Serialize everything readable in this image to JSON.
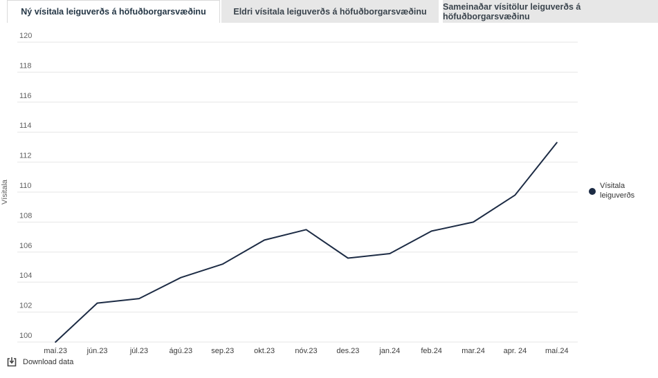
{
  "tabs": [
    {
      "label": "Ný vísitala leiguverðs á höfuðborgarsvæðinu",
      "active": true
    },
    {
      "label": "Eldri vísitala leiguverðs á höfuðborgarsvæðinu",
      "active": false
    },
    {
      "label": "Sameinaðar vísitölur leiguverðs á höfuðborgarsvæðinu",
      "active": false
    }
  ],
  "chart_data": {
    "type": "line",
    "categories": [
      "maí.23",
      "jún.23",
      "júl.23",
      "ágú.23",
      "sep.23",
      "okt.23",
      "nóv.23",
      "des.23",
      "jan.24",
      "feb.24",
      "mar.24",
      "apr. 24",
      "maí.24"
    ],
    "series": [
      {
        "name": "Vísitala leiguverðs",
        "values": [
          100.0,
          102.6,
          102.9,
          104.3,
          105.2,
          106.8,
          107.5,
          105.6,
          105.9,
          107.4,
          108.0,
          109.8,
          113.3
        ],
        "color": "#1c2b44"
      }
    ],
    "title": "",
    "xlabel": "",
    "ylabel": "Vísitala",
    "ylim": [
      100,
      120
    ],
    "ytick_step": 2,
    "grid": true,
    "legend_position": "right"
  },
  "legend": {
    "label": "Vísitala leiguverðs",
    "dot_color": "#1c2b44"
  },
  "footer": {
    "download_label": "Download data"
  },
  "colors": {
    "series_line": "#1c2b44",
    "gridline": "#e6e6e6",
    "tab_inactive_bg": "#e7e7e7",
    "tab_active_text": "#253746",
    "axis_label": "#606060"
  }
}
